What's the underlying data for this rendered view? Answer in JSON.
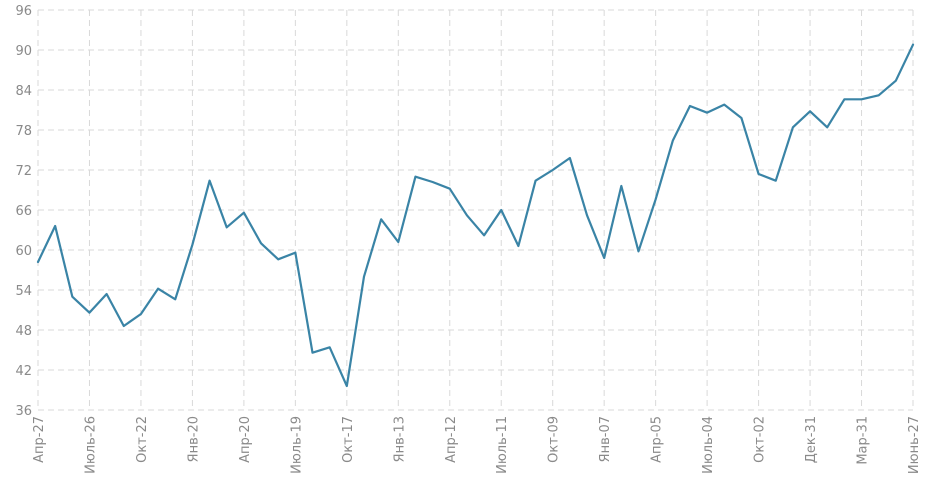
{
  "chart_data": {
    "type": "line",
    "title": "",
    "xlabel": "",
    "ylabel": "",
    "ylim": [
      36,
      96
    ],
    "y_ticks": [
      36,
      42,
      48,
      54,
      60,
      66,
      72,
      78,
      84,
      90,
      96
    ],
    "grid": true,
    "legend": "none",
    "x_tick_labels": [
      "Апр-27",
      "Июль-26",
      "Окт-22",
      "Янв-20",
      "Апр-20",
      "Июль-19",
      "Окт-17",
      "Янв-13",
      "Апр-12",
      "Июль-11",
      "Окт-09",
      "Янв-07",
      "Апр-05",
      "Июль-04",
      "Окт-02",
      "Дек-31",
      "Мар-31",
      "Июнь-27"
    ],
    "x_tick_index": [
      0,
      3,
      6,
      9,
      12,
      15,
      18,
      21,
      24,
      27,
      30,
      33,
      36,
      39,
      42,
      45,
      48,
      51
    ],
    "series": [
      {
        "color": "#3a84a6",
        "values": [
          58.2,
          63.6,
          53.0,
          50.6,
          53.4,
          48.6,
          50.4,
          54.2,
          52.6,
          60.8,
          70.4,
          63.4,
          65.6,
          61.0,
          58.6,
          59.6,
          44.6,
          45.4,
          39.6,
          56.0,
          64.6,
          61.2,
          71.0,
          70.2,
          69.2,
          65.2,
          62.2,
          66.0,
          60.6,
          70.4,
          72.0,
          73.8,
          65.2,
          58.8,
          69.6,
          59.8,
          67.6,
          76.4,
          81.6,
          80.6,
          81.8,
          79.8,
          71.4,
          70.4,
          78.4,
          80.8,
          78.4,
          82.6,
          82.6,
          83.2,
          85.4,
          90.8
        ]
      }
    ]
  }
}
